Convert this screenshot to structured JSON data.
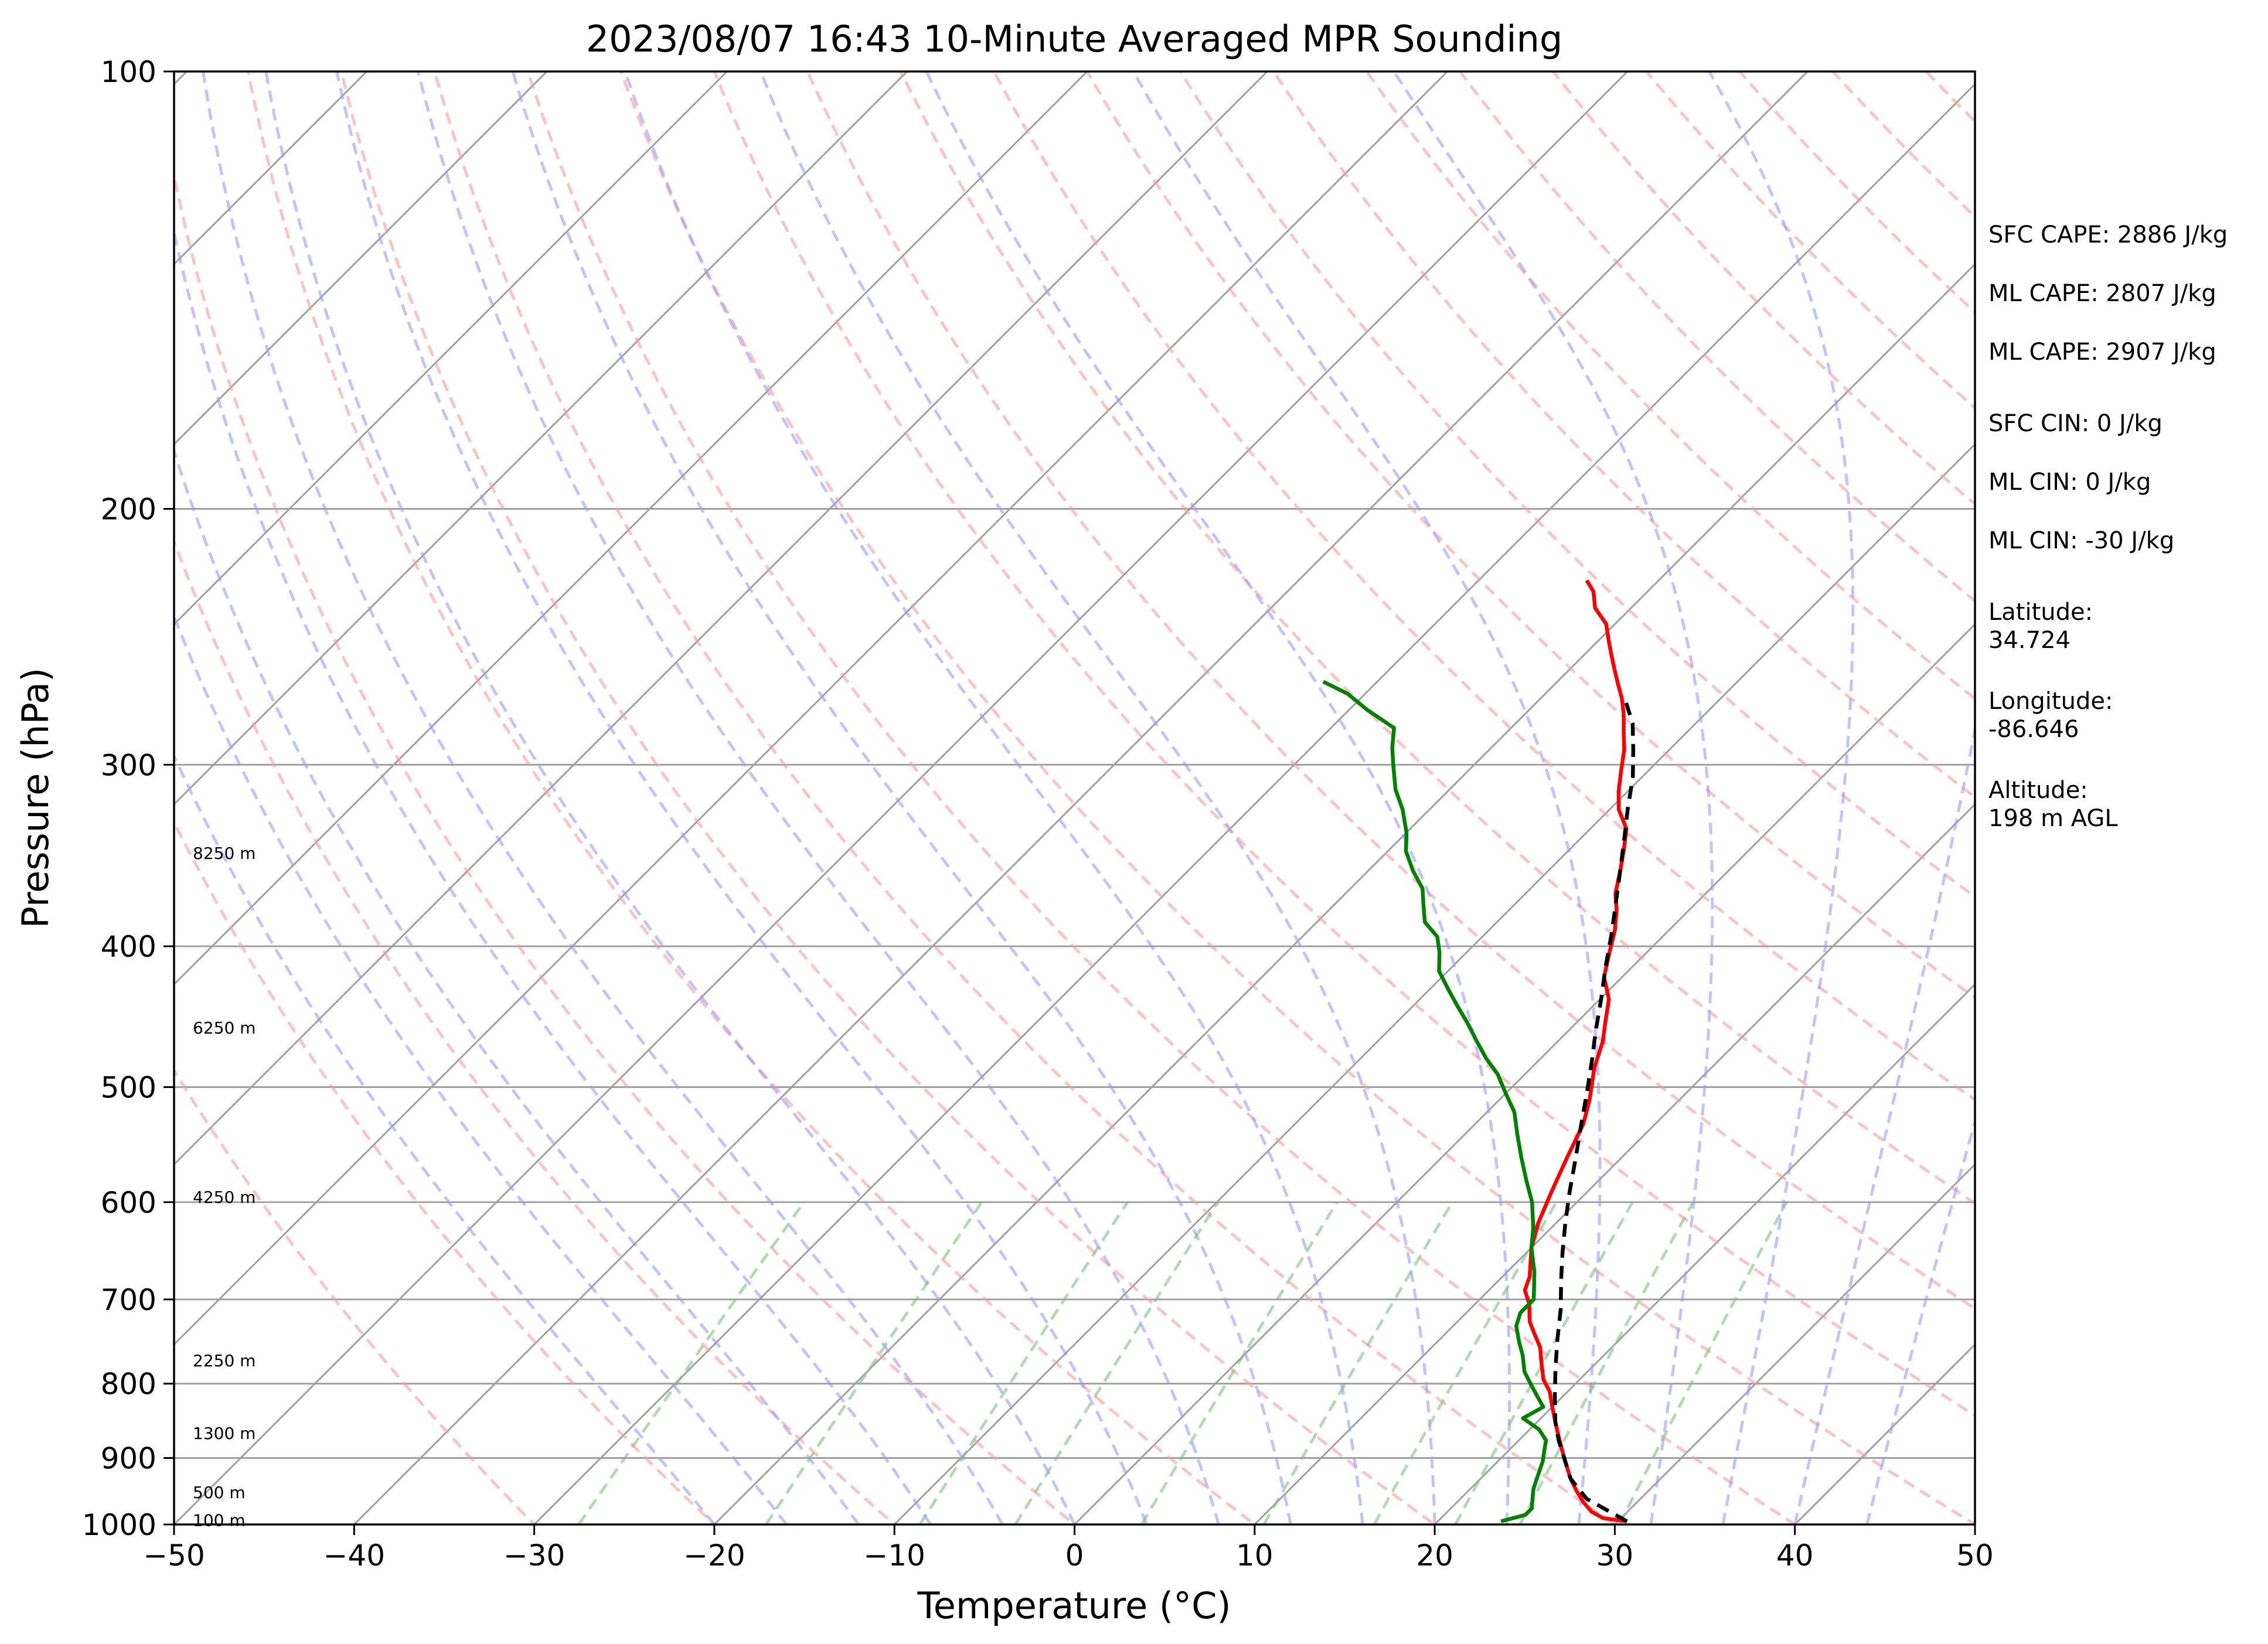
{
  "chart_data": {
    "type": "line",
    "chart_kind": "skew-T log-P sounding",
    "title": "2023/08/07 16:43 10-Minute Averaged MPR Sounding",
    "xlabel": "Temperature (°C)",
    "ylabel": "Pressure (hPa)",
    "xlim": [
      -50,
      50
    ],
    "ylim": [
      1000,
      100
    ],
    "y_scale": "log",
    "x_ticks": [
      -50,
      -40,
      -30,
      -20,
      -10,
      0,
      10,
      20,
      30,
      40,
      50
    ],
    "x_tick_labels": [
      "−50",
      "−40",
      "−30",
      "−20",
      "−10",
      "0",
      "10",
      "20",
      "30",
      "40",
      "50"
    ],
    "y_ticks": [
      1000,
      900,
      800,
      700,
      600,
      500,
      400,
      300,
      200,
      100
    ],
    "y_tick_labels": [
      "1000",
      "900",
      "800",
      "700",
      "600",
      "500",
      "400",
      "300",
      "200",
      "100"
    ],
    "grid": true,
    "height_labels": [
      {
        "text": "100 m",
        "p": 993
      },
      {
        "text": "500 m",
        "p": 950
      },
      {
        "text": "1300 m",
        "p": 865
      },
      {
        "text": "2250 m",
        "p": 771
      },
      {
        "text": "4250 m",
        "p": 595
      },
      {
        "text": "6250 m",
        "p": 455
      },
      {
        "text": "8250 m",
        "p": 345
      }
    ],
    "series": [
      {
        "role": "temperature",
        "color": "#ff0000",
        "points": [
          [
            30.5,
            995
          ],
          [
            29.0,
            990
          ],
          [
            28.0,
            980
          ],
          [
            27.0,
            965
          ],
          [
            26.0,
            948
          ],
          [
            25.0,
            930
          ],
          [
            24.0,
            910
          ],
          [
            23.0,
            890
          ],
          [
            22.0,
            870
          ],
          [
            21.0,
            850
          ],
          [
            20.0,
            830
          ],
          [
            19.0,
            810
          ],
          [
            18.0,
            795
          ],
          [
            17.0,
            775
          ],
          [
            16.0,
            755
          ],
          [
            15.0,
            740
          ],
          [
            14.0,
            725
          ],
          [
            13.0,
            705
          ],
          [
            12.0,
            690
          ],
          [
            11.5,
            675
          ],
          [
            10.0,
            645
          ],
          [
            9.0,
            620
          ],
          [
            8.0,
            590
          ],
          [
            7.0,
            560
          ],
          [
            6.0,
            530
          ],
          [
            5.0,
            510
          ],
          [
            3.5,
            485
          ],
          [
            2.5,
            465
          ],
          [
            1.5,
            450
          ],
          [
            0.5,
            435
          ],
          [
            -1.0,
            420
          ],
          [
            -2.0,
            405
          ],
          [
            -3.0,
            390
          ],
          [
            -4.0,
            378
          ],
          [
            -5.0,
            368
          ],
          [
            -6.0,
            355
          ],
          [
            -7.0,
            343
          ],
          [
            -8.0,
            332
          ],
          [
            -9.5,
            322
          ],
          [
            -10.5,
            313
          ],
          [
            -11.5,
            303
          ],
          [
            -12.5,
            293
          ],
          [
            -13.5,
            285
          ],
          [
            -14.5,
            277
          ],
          [
            -15.5,
            270
          ],
          [
            -16.5,
            264
          ],
          [
            -17.5,
            258
          ],
          [
            -18.5,
            252
          ],
          [
            -19.5,
            246
          ],
          [
            -20.5,
            240
          ],
          [
            -22.0,
            234
          ],
          [
            -23.0,
            228
          ],
          [
            -24.0,
            224
          ]
        ]
      },
      {
        "role": "dewpoint",
        "color": "#008000",
        "points": [
          [
            23.5,
            995
          ],
          [
            24.5,
            985
          ],
          [
            24.5,
            975
          ],
          [
            24.0,
            960
          ],
          [
            23.5,
            945
          ],
          [
            23.0,
            925
          ],
          [
            22.5,
            905
          ],
          [
            22.0,
            890
          ],
          [
            21.5,
            875
          ],
          [
            20.5,
            860
          ],
          [
            19.0,
            845
          ],
          [
            19.5,
            830
          ],
          [
            18.5,
            815
          ],
          [
            17.5,
            800
          ],
          [
            16.5,
            785
          ],
          [
            15.5,
            765
          ],
          [
            14.5,
            748
          ],
          [
            13.5,
            730
          ],
          [
            13.0,
            715
          ],
          [
            13.0,
            700
          ],
          [
            11.5,
            670
          ],
          [
            10.0,
            645
          ],
          [
            9.0,
            625
          ],
          [
            7.5,
            600
          ],
          [
            6.0,
            580
          ],
          [
            4.5,
            560
          ],
          [
            3.0,
            540
          ],
          [
            1.5,
            520
          ],
          [
            0.0,
            505
          ],
          [
            -1.5,
            490
          ],
          [
            -3.0,
            478
          ],
          [
            -4.5,
            465
          ],
          [
            -6.0,
            452
          ],
          [
            -7.5,
            440
          ],
          [
            -9.0,
            428
          ],
          [
            -10.5,
            416
          ],
          [
            -11.5,
            404
          ],
          [
            -12.5,
            394
          ],
          [
            -14.0,
            385
          ],
          [
            -15.0,
            375
          ],
          [
            -16.0,
            365
          ],
          [
            -17.5,
            355
          ],
          [
            -19.0,
            344
          ],
          [
            -20.0,
            334
          ],
          [
            -21.5,
            322
          ],
          [
            -23.0,
            312
          ],
          [
            -24.5,
            300
          ],
          [
            -25.5,
            292
          ],
          [
            -26.5,
            283
          ],
          [
            -29.0,
            275
          ],
          [
            -31.0,
            268
          ],
          [
            -33.0,
            263
          ]
        ]
      },
      {
        "role": "parcel",
        "color": "#000000",
        "dashed": true,
        "points": [
          [
            30.5,
            995
          ],
          [
            27.0,
            960
          ],
          [
            25.0,
            930
          ],
          [
            23.5,
            900
          ],
          [
            22.2,
            875
          ],
          [
            21.0,
            850
          ],
          [
            19.5,
            815
          ],
          [
            18.0,
            780
          ],
          [
            16.5,
            745
          ],
          [
            15.0,
            710
          ],
          [
            13.5,
            680
          ],
          [
            12.0,
            650
          ],
          [
            10.5,
            620
          ],
          [
            9.0,
            590
          ],
          [
            7.5,
            560
          ],
          [
            6.0,
            532
          ],
          [
            4.5,
            505
          ],
          [
            3.0,
            480
          ],
          [
            1.5,
            457
          ],
          [
            0.0,
            434
          ],
          [
            -1.5,
            413
          ],
          [
            -3.0,
            392
          ],
          [
            -4.5,
            373
          ],
          [
            -6.0,
            355
          ],
          [
            -7.5,
            338
          ],
          [
            -9.0,
            322
          ],
          [
            -10.5,
            306
          ],
          [
            -12.0,
            293
          ],
          [
            -13.5,
            281
          ],
          [
            -15.0,
            272
          ]
        ]
      }
    ]
  },
  "info_panel": {
    "sfc_cape": "SFC CAPE: 2886 J/kg",
    "ml_cape_1": "ML CAPE: 2807 J/kg",
    "ml_cape_2": "ML CAPE: 2907 J/kg",
    "sfc_cin": "SFC CIN: 0 J/kg",
    "ml_cin_1": "ML CIN: 0 J/kg",
    "ml_cin_2": "ML CIN: -30 J/kg",
    "latitude_label": "Latitude:",
    "latitude_value": "34.724",
    "longitude_label": "Longitude:",
    "longitude_value": "-86.646",
    "altitude_label": "Altitude:",
    "altitude_value": "198 m AGL"
  },
  "colors": {
    "isotherm": "#a0a0a0",
    "dry_adiabat": "#ff9999",
    "moist_adiabat": "#9999ff",
    "mixing_ratio": "#80c080",
    "temperature": "#ff0000",
    "dewpoint": "#008000",
    "parcel": "#000000"
  }
}
